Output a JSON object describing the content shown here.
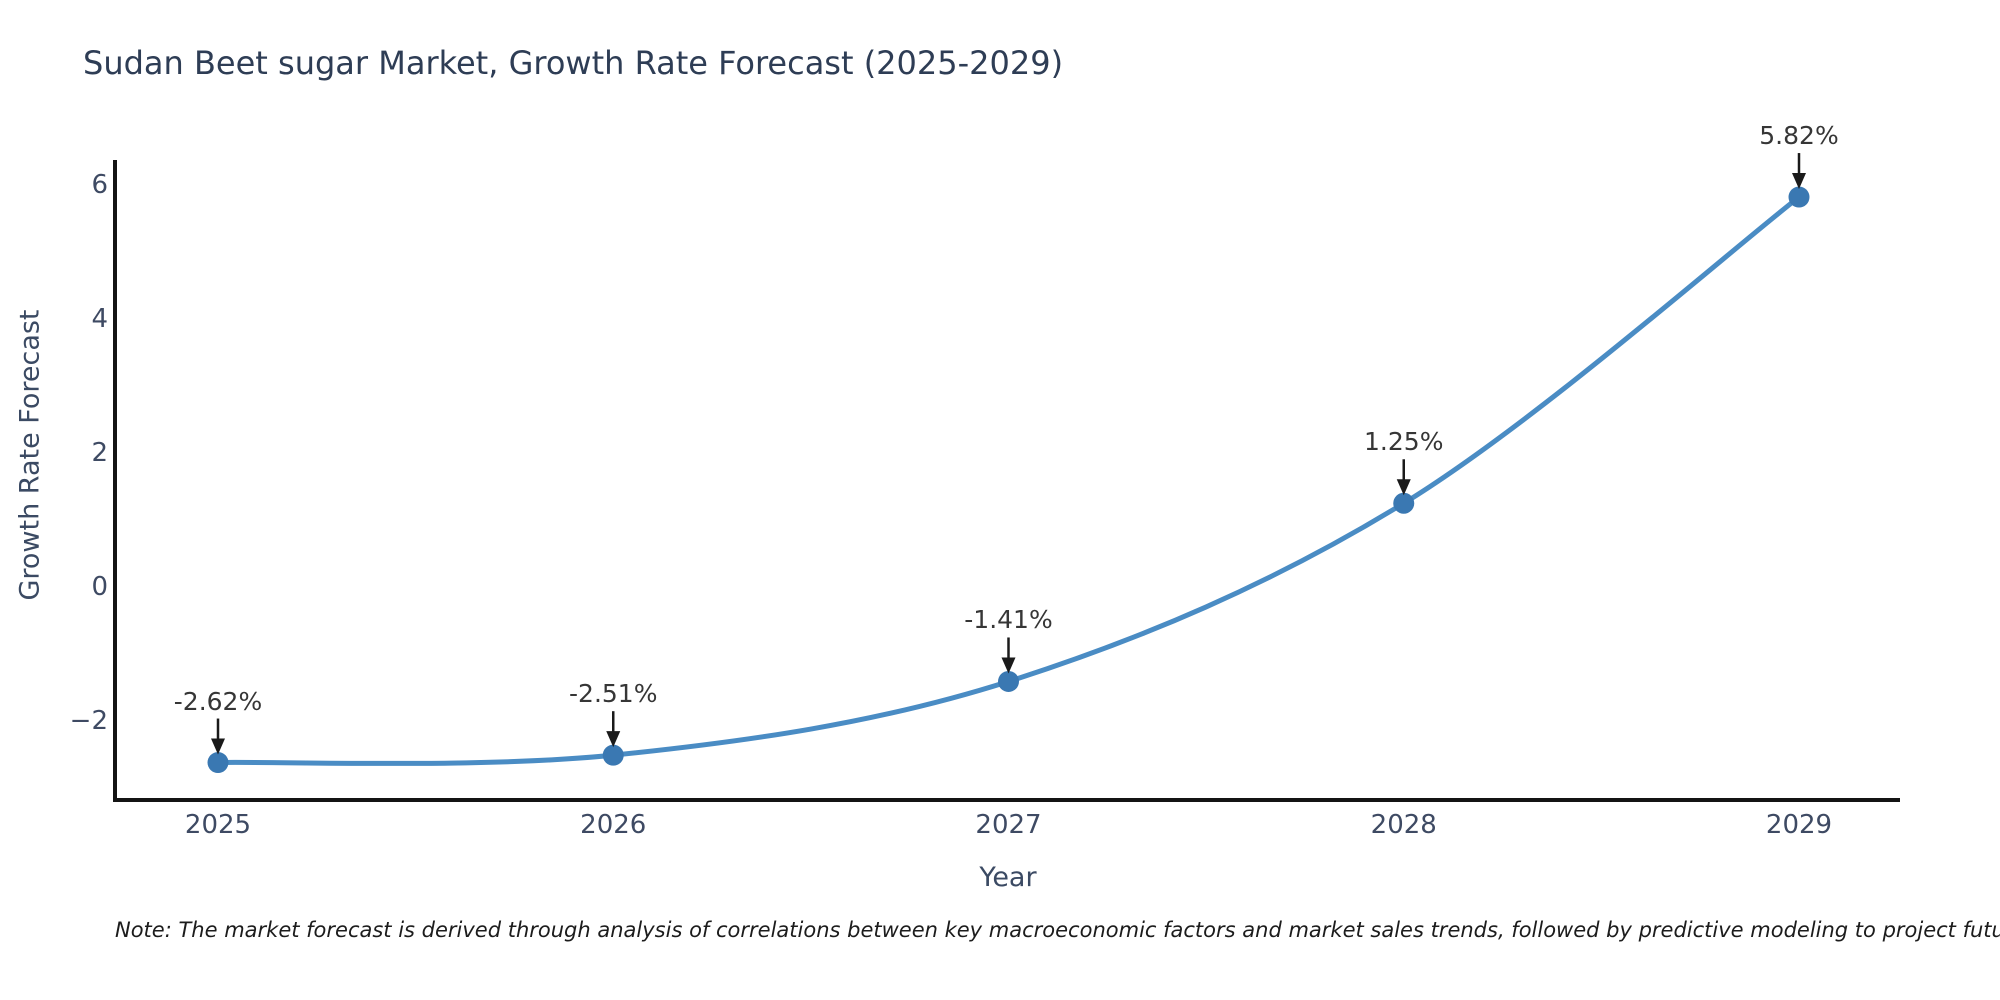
{
  "chart_data": {
    "type": "line",
    "title": "Sudan Beet sugar Market, Growth Rate Forecast (2025-2029)",
    "xlabel": "Year",
    "ylabel": "Growth Rate Forecast",
    "x": [
      2025,
      2026,
      2027,
      2028,
      2029
    ],
    "x_tick_labels": [
      "2025",
      "2026",
      "2027",
      "2028",
      "2029"
    ],
    "series": [
      {
        "name": "Growth Rate Forecast",
        "values": [
          -2.62,
          -2.51,
          -1.41,
          1.25,
          5.82
        ]
      }
    ],
    "point_labels": [
      "-2.62%",
      "-2.51%",
      "-1.41%",
      "1.25%",
      "5.82%"
    ],
    "y_ticks": [
      {
        "label": "6",
        "value": 6
      },
      {
        "label": "4",
        "value": 4
      },
      {
        "label": "2",
        "value": 2
      },
      {
        "label": "0",
        "value": 0
      },
      {
        "label": "−2",
        "value": -2
      }
    ],
    "ylim": [
      -3.3,
      6.4
    ],
    "grid": false,
    "legend_position": "none",
    "curve_style": "spline",
    "colors": {
      "line": "#4a8cc4",
      "marker": "#3a78b2",
      "axis": "#141414",
      "arrow": "#1a1a1a",
      "title_text": "#2e3d55",
      "axis_title_text": "#3b4a63",
      "tick_text": "#3e4a63",
      "annotation_text": "#363636"
    }
  },
  "note": {
    "text": "Note: The market forecast is derived through analysis of correlations between key macroeconomic factors and market sales trends, followed by predictive modeling to project future sales"
  }
}
